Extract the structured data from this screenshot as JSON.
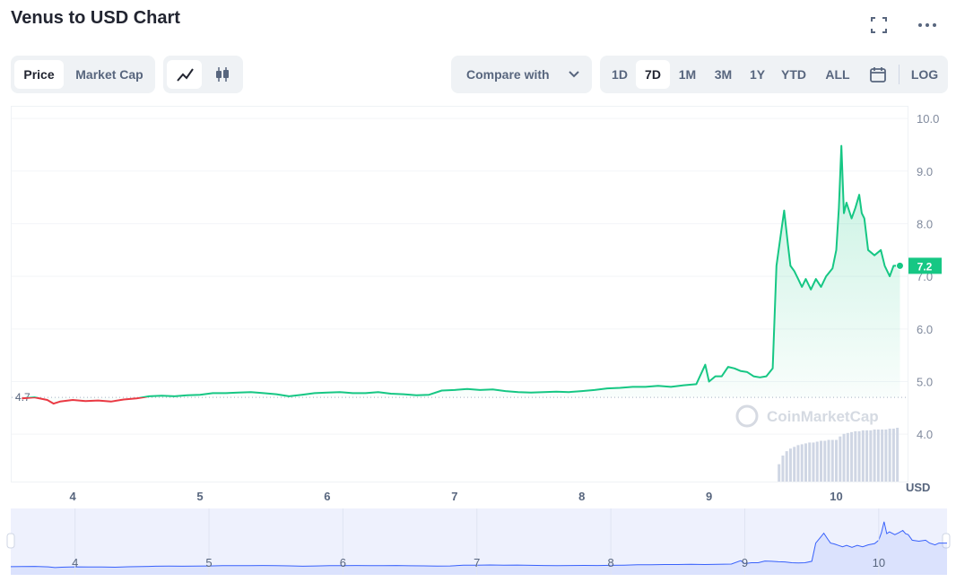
{
  "header": {
    "title": "Venus to USD Chart"
  },
  "tabs": [
    "Price",
    "Market Cap"
  ],
  "active_tab": 0,
  "compare": "Compare with",
  "ranges": [
    "1D",
    "7D",
    "1M",
    "3M",
    "1Y",
    "YTD",
    "ALL"
  ],
  "active_range": 1,
  "log": "LOG",
  "chart_data": {
    "type": "line",
    "x": [
      3.6,
      3.7,
      3.8,
      3.85,
      3.9,
      4.0,
      4.1,
      4.2,
      4.3,
      4.4,
      4.5,
      4.55,
      4.6,
      4.7,
      4.8,
      4.9,
      5.0,
      5.1,
      5.2,
      5.3,
      5.4,
      5.5,
      5.6,
      5.7,
      5.8,
      5.9,
      6.0,
      6.1,
      6.2,
      6.3,
      6.4,
      6.5,
      6.6,
      6.7,
      6.8,
      6.9,
      7.0,
      7.1,
      7.2,
      7.3,
      7.4,
      7.5,
      7.6,
      7.7,
      7.8,
      7.9,
      8.0,
      8.1,
      8.2,
      8.3,
      8.4,
      8.5,
      8.6,
      8.7,
      8.8,
      8.9,
      8.97,
      9.0,
      9.05,
      9.1,
      9.15,
      9.2,
      9.25,
      9.3,
      9.35,
      9.4,
      9.45,
      9.5,
      9.53,
      9.57,
      9.59,
      9.62,
      9.64,
      9.67,
      9.7,
      9.73,
      9.76,
      9.8,
      9.84,
      9.88,
      9.92,
      9.97,
      10.0,
      10.02,
      10.04,
      10.06,
      10.08,
      10.12,
      10.15,
      10.18,
      10.2,
      10.22,
      10.25,
      10.3,
      10.35,
      10.38,
      10.42,
      10.45,
      10.5
    ],
    "values": [
      4.68,
      4.7,
      4.65,
      4.58,
      4.62,
      4.65,
      4.63,
      4.64,
      4.62,
      4.66,
      4.68,
      4.7,
      4.72,
      4.73,
      4.72,
      4.74,
      4.75,
      4.78,
      4.78,
      4.79,
      4.8,
      4.78,
      4.76,
      4.72,
      4.75,
      4.78,
      4.79,
      4.8,
      4.78,
      4.78,
      4.8,
      4.77,
      4.76,
      4.74,
      4.75,
      4.83,
      4.84,
      4.86,
      4.84,
      4.85,
      4.82,
      4.8,
      4.79,
      4.8,
      4.81,
      4.8,
      4.82,
      4.84,
      4.87,
      4.88,
      4.9,
      4.9,
      4.92,
      4.9,
      4.93,
      4.95,
      5.32,
      5.0,
      5.1,
      5.1,
      5.28,
      5.25,
      5.2,
      5.18,
      5.1,
      5.08,
      5.1,
      5.25,
      7.2,
      7.9,
      8.25,
      7.6,
      7.2,
      7.1,
      6.95,
      6.8,
      6.95,
      6.75,
      6.95,
      6.8,
      7.0,
      7.15,
      7.5,
      8.3,
      9.48,
      8.2,
      8.4,
      8.1,
      8.3,
      8.55,
      8.2,
      8.1,
      7.5,
      7.4,
      7.5,
      7.2,
      7.0,
      7.2,
      7.2
    ],
    "xlim": [
      3.52,
      10.56
    ],
    "ylim": [
      3.1,
      10.24
    ],
    "xticks": [
      4,
      5,
      6,
      7,
      8,
      9,
      10
    ],
    "yticks": [
      {
        "value": 4,
        "label": "4.0"
      },
      {
        "value": 5,
        "label": "5.0"
      },
      {
        "value": 6,
        "label": "6.0"
      },
      {
        "value": 7,
        "label": "7.0"
      },
      {
        "value": 8,
        "label": "8.0"
      },
      {
        "value": 9,
        "label": "9.0"
      },
      {
        "value": 10,
        "label": "10.0"
      }
    ],
    "y_unit": "USD",
    "grid": true,
    "baseline": {
      "value": 4.7,
      "label": "4.7"
    },
    "current": {
      "value": 7.2,
      "label": "7.2"
    },
    "color_up": "#16c784",
    "color_down": "#ea3943",
    "watermark": "CoinMarketCap",
    "volume": {
      "x": [
        9.55,
        9.58,
        9.61,
        9.64,
        9.67,
        9.7,
        9.73,
        9.76,
        9.79,
        9.82,
        9.85,
        9.88,
        9.91,
        9.94,
        9.97,
        10.0,
        10.03,
        10.06,
        10.09,
        10.12,
        10.15,
        10.18,
        10.21,
        10.24,
        10.27,
        10.3,
        10.33,
        10.36,
        10.39,
        10.42,
        10.45,
        10.48
      ],
      "values": [
        20,
        30,
        35,
        38,
        40,
        42,
        43,
        44,
        45,
        45,
        46,
        47,
        47,
        48,
        48,
        48,
        52,
        55,
        56,
        57,
        58,
        58,
        59,
        59,
        59,
        60,
        60,
        60,
        60,
        61,
        61,
        62
      ],
      "color": "#cfd6e4"
    },
    "navigator": {
      "xlim": [
        3.52,
        10.51
      ],
      "ylim": [
        3.8,
        10.9
      ],
      "color": "#3861fb"
    }
  }
}
